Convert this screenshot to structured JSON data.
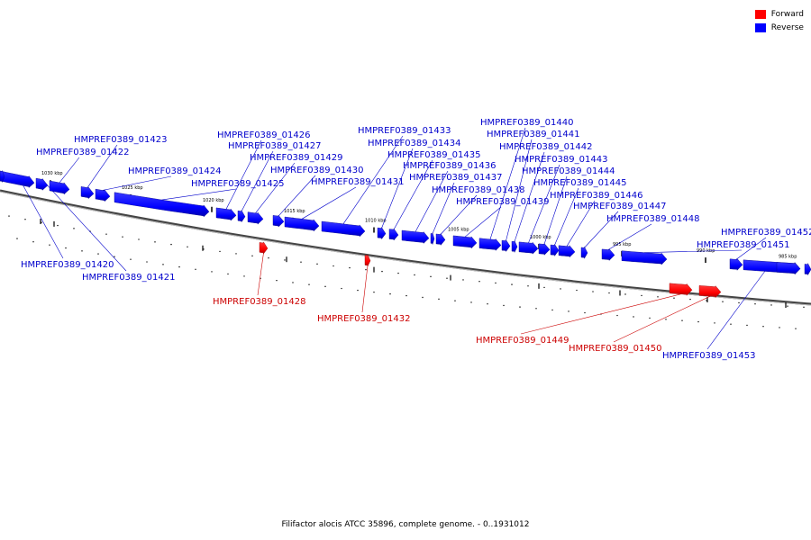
{
  "legend": {
    "forward": {
      "label": "Forward",
      "color": "#ff0000"
    },
    "reverse": {
      "label": "Reverse",
      "color": "#0000ff"
    }
  },
  "caption": "Filifactor alocis ATCC 35896, complete genome. - 0..1931012",
  "ticks": [
    {
      "label": "1030 kbp"
    },
    {
      "label": "1025 kbp"
    },
    {
      "label": "1020 kbp"
    },
    {
      "label": "1015 kbp"
    },
    {
      "label": "1010 kbp"
    },
    {
      "label": "1005 kbp"
    },
    {
      "label": "1000 kbp"
    },
    {
      "label": "995 kbp"
    },
    {
      "label": "990 kbp"
    },
    {
      "label": "985 kbp"
    }
  ],
  "genes": [
    {
      "name": "HMPREF0389_01420",
      "strand": "reverse"
    },
    {
      "name": "HMPREF0389_01421",
      "strand": "reverse"
    },
    {
      "name": "HMPREF0389_01422",
      "strand": "reverse"
    },
    {
      "name": "HMPREF0389_01423",
      "strand": "reverse"
    },
    {
      "name": "HMPREF0389_01424",
      "strand": "reverse"
    },
    {
      "name": "HMPREF0389_01425",
      "strand": "reverse"
    },
    {
      "name": "HMPREF0389_01426",
      "strand": "reverse"
    },
    {
      "name": "HMPREF0389_01427",
      "strand": "reverse"
    },
    {
      "name": "HMPREF0389_01428",
      "strand": "forward"
    },
    {
      "name": "HMPREF0389_01429",
      "strand": "reverse"
    },
    {
      "name": "HMPREF0389_01430",
      "strand": "reverse"
    },
    {
      "name": "HMPREF0389_01431",
      "strand": "reverse"
    },
    {
      "name": "HMPREF0389_01432",
      "strand": "forward"
    },
    {
      "name": "HMPREF0389_01433",
      "strand": "reverse"
    },
    {
      "name": "HMPREF0389_01434",
      "strand": "reverse"
    },
    {
      "name": "HMPREF0389_01435",
      "strand": "reverse"
    },
    {
      "name": "HMPREF0389_01436",
      "strand": "reverse"
    },
    {
      "name": "HMPREF0389_01437",
      "strand": "reverse"
    },
    {
      "name": "HMPREF0389_01438",
      "strand": "reverse"
    },
    {
      "name": "HMPREF0389_01439",
      "strand": "reverse"
    },
    {
      "name": "HMPREF0389_01440",
      "strand": "reverse"
    },
    {
      "name": "HMPREF0389_01441",
      "strand": "reverse"
    },
    {
      "name": "HMPREF0389_01442",
      "strand": "reverse"
    },
    {
      "name": "HMPREF0389_01443",
      "strand": "reverse"
    },
    {
      "name": "HMPREF0389_01444",
      "strand": "reverse"
    },
    {
      "name": "HMPREF0389_01445",
      "strand": "reverse"
    },
    {
      "name": "HMPREF0389_01446",
      "strand": "reverse"
    },
    {
      "name": "HMPREF0389_01447",
      "strand": "reverse"
    },
    {
      "name": "HMPREF0389_01448",
      "strand": "reverse"
    },
    {
      "name": "HMPREF0389_01449",
      "strand": "forward"
    },
    {
      "name": "HMPREF0389_01450",
      "strand": "forward"
    },
    {
      "name": "HMPREF0389_01451",
      "strand": "reverse"
    },
    {
      "name": "HMPREF0389_01452",
      "strand": "reverse"
    },
    {
      "name": "HMPREF0389_01453",
      "strand": "reverse"
    }
  ]
}
